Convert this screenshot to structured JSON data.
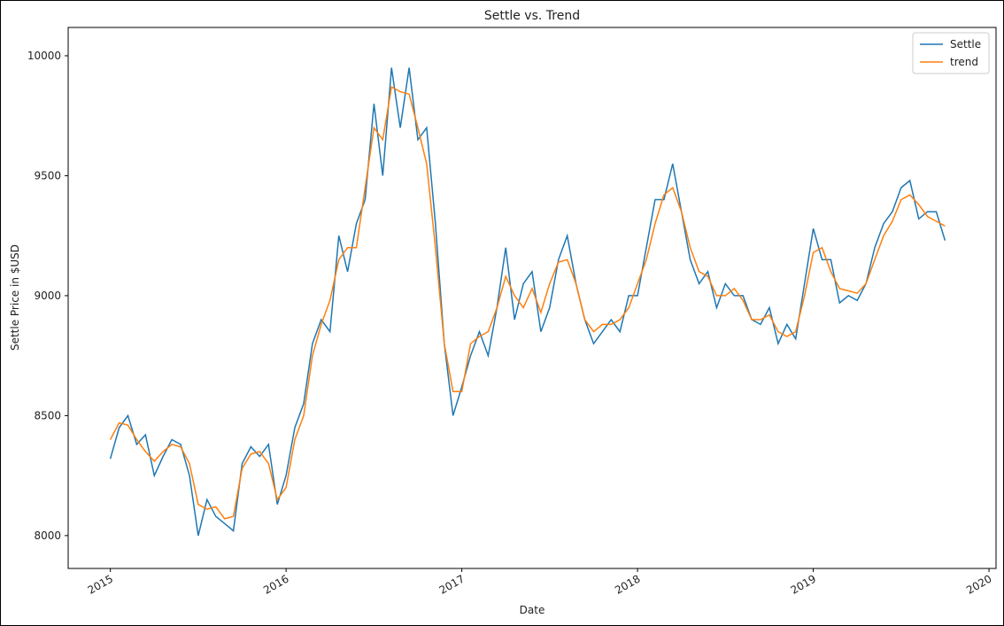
{
  "chart_data": {
    "type": "line",
    "title": "Settle vs. Trend",
    "xlabel": "Date",
    "ylabel": "Settle Price in $USD",
    "x": [
      2015.0,
      2015.05,
      2015.1,
      2015.15,
      2015.2,
      2015.25,
      2015.3,
      2015.35,
      2015.4,
      2015.45,
      2015.5,
      2015.55,
      2015.6,
      2015.65,
      2015.7,
      2015.75,
      2015.8,
      2015.85,
      2015.9,
      2015.95,
      2016.0,
      2016.05,
      2016.1,
      2016.15,
      2016.2,
      2016.25,
      2016.3,
      2016.35,
      2016.4,
      2016.45,
      2016.5,
      2016.55,
      2016.6,
      2016.65,
      2016.7,
      2016.75,
      2016.8,
      2016.85,
      2016.9,
      2016.95,
      2017.0,
      2017.05,
      2017.1,
      2017.15,
      2017.2,
      2017.25,
      2017.3,
      2017.35,
      2017.4,
      2017.45,
      2017.5,
      2017.55,
      2017.6,
      2017.65,
      2017.7,
      2017.75,
      2017.8,
      2017.85,
      2017.9,
      2017.95,
      2018.0,
      2018.05,
      2018.1,
      2018.15,
      2018.2,
      2018.25,
      2018.3,
      2018.35,
      2018.4,
      2018.45,
      2018.5,
      2018.55,
      2018.6,
      2018.65,
      2018.7,
      2018.75,
      2018.8,
      2018.85,
      2018.9,
      2018.95,
      2019.0,
      2019.05,
      2019.1,
      2019.15,
      2019.2,
      2019.25,
      2019.3,
      2019.35,
      2019.4,
      2019.45,
      2019.5,
      2019.55,
      2019.6,
      2019.65,
      2019.7,
      2019.75
    ],
    "series": [
      {
        "name": "Settle",
        "color": "#1f77b4",
        "values": [
          8320,
          8450,
          8500,
          8380,
          8420,
          8250,
          8330,
          8400,
          8380,
          8250,
          8000,
          8150,
          8080,
          8050,
          8020,
          8300,
          8370,
          8330,
          8380,
          8130,
          8250,
          8450,
          8550,
          8800,
          8900,
          8850,
          9250,
          9100,
          9300,
          9400,
          9800,
          9500,
          9950,
          9700,
          9950,
          9650,
          9700,
          9300,
          8800,
          8500,
          8620,
          8750,
          8850,
          8750,
          8950,
          9200,
          8900,
          9050,
          9100,
          8850,
          8950,
          9150,
          9250,
          9050,
          8900,
          8800,
          8850,
          8900,
          8850,
          9000,
          9000,
          9200,
          9400,
          9400,
          9550,
          9350,
          9150,
          9050,
          9100,
          8950,
          9050,
          9000,
          9000,
          8900,
          8880,
          8950,
          8800,
          8880,
          8820,
          9050,
          9280,
          9150,
          9150,
          8970,
          9000,
          8980,
          9050,
          9200,
          9300,
          9350,
          9450,
          9480,
          9320,
          9350,
          9350,
          9230
        ]
      },
      {
        "name": "trend",
        "color": "#ff7f0e",
        "values": [
          8400,
          8470,
          8460,
          8400,
          8350,
          8310,
          8350,
          8380,
          8370,
          8300,
          8130,
          8110,
          8120,
          8070,
          8080,
          8280,
          8340,
          8350,
          8300,
          8150,
          8200,
          8400,
          8500,
          8750,
          8880,
          8980,
          9150,
          9200,
          9200,
          9450,
          9700,
          9650,
          9870,
          9850,
          9840,
          9700,
          9550,
          9200,
          8800,
          8600,
          8600,
          8800,
          8830,
          8850,
          8950,
          9080,
          9000,
          8950,
          9030,
          8930,
          9050,
          9140,
          9150,
          9050,
          8900,
          8850,
          8880,
          8880,
          8900,
          8950,
          9050,
          9150,
          9300,
          9420,
          9450,
          9350,
          9200,
          9100,
          9080,
          9000,
          9000,
          9030,
          8980,
          8900,
          8900,
          8920,
          8850,
          8830,
          8850,
          9000,
          9180,
          9200,
          9100,
          9030,
          9020,
          9010,
          9050,
          9150,
          9250,
          9310,
          9400,
          9420,
          9380,
          9330,
          9310,
          9290
        ]
      }
    ],
    "xlim": [
      2014.76,
      2020.04
    ],
    "xticks": [
      2015,
      2016,
      2017,
      2018,
      2019,
      2020
    ],
    "ylim": [
      7863,
      10118
    ],
    "yticks": [
      8000,
      8500,
      9000,
      9500,
      10000
    ],
    "legend": "upper right",
    "grid": false
  }
}
